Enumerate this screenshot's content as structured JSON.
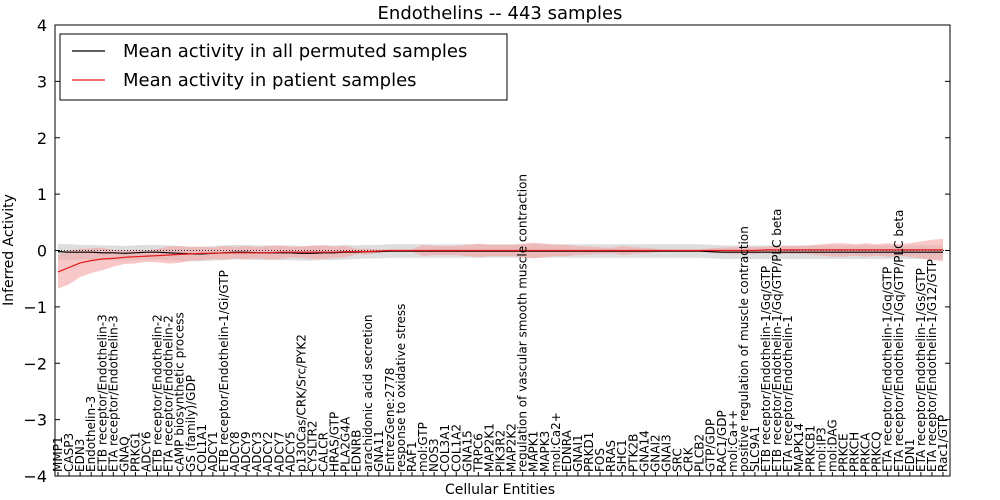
{
  "chart_data": {
    "type": "line",
    "title": "Endothelins -- 443 samples",
    "xlabel": "Cellular Entities",
    "ylabel": "Inferred Activity",
    "ylim": [
      -4,
      4
    ],
    "yticks": [
      -4,
      -3,
      -2,
      -1,
      0,
      1,
      2,
      3,
      4
    ],
    "legend_position": "top-left",
    "colors": {
      "permuted": "#000000",
      "patient": "#e41a1c",
      "patient_band": "#f4a3a3",
      "permuted_band": "#bdbdbd"
    },
    "categories": [
      "MMP1",
      "CASP3",
      "EDN3",
      "Endothelin-3",
      "ETB receptor/Endothelin-3",
      "ETA receptor/Endothelin-3",
      "GNAQ",
      "PRKG1",
      "ADCY6",
      "ETB receptor/Endothelin-2",
      "ETA receptor/Endothelin-2",
      "cAMP biosynthetic process",
      "GS (family)/GDP",
      "COL1A1",
      "ADCY1",
      "ETB receptor/Endothelin-1/Gi/GTP",
      "ADCY8",
      "ADCY9",
      "ADCY3",
      "ADCY2",
      "ADCY7",
      "ADCY5",
      "p130Cas/CRK/Src/PYK2",
      "CYSLTR2",
      "CALCR",
      "HRAS/GTP",
      "PLA2G4A",
      "EDNRB",
      "arachidonic acid secretion",
      "GNA11",
      "EntrezGene:2778",
      "response to oxidative stress",
      "RAF1",
      "mol:GTP",
      "NOS3",
      "COL3A1",
      "COL1A2",
      "GNA15",
      "TRPC6",
      "MAP2K1",
      "PIK3R2",
      "MAP2K2",
      "regulation of vascular smooth muscle contraction",
      "MAPK1",
      "MAPK3",
      "mol:Ca2+",
      "EDNRA",
      "GNAI1",
      "PRKD1",
      "FOS",
      "RRAS",
      "SHC1",
      "PTK2B",
      "GNA14",
      "GNAI2",
      "GNAI3",
      "SRC",
      "CRK",
      "PLCB2",
      "GTP/GDP",
      "RAC1/GDP",
      "mol:Ca++",
      "positive regulation of muscle contraction",
      "SLC9A1",
      "ETB receptor/Endothelin-1/Gq/GTP",
      "ETB receptor/Endothelin-1/Gq/GTP/PLC beta",
      "ETA receptor/Endothelin-1",
      "MAPK14",
      "PRKCB1",
      "mol:IP3",
      "mol:DAG",
      "PRKCE",
      "PRKCH",
      "PRKCA",
      "PRKCQ",
      "ETA receptor/Endothelin-1/Gq/GTP",
      "ETA receptor/Endothelin-1/Gq/GTP/PLC beta",
      "EDN1",
      "ETA receptor/Endothelin-1/Gs/GTP",
      "ETA receptor/Endothelin-1/G12/GTP",
      "Rac1/GTP"
    ],
    "series": [
      {
        "name": "Mean activity in all permuted samples",
        "values": [
          -0.02,
          -0.03,
          -0.03,
          -0.03,
          -0.04,
          -0.04,
          -0.05,
          -0.04,
          -0.03,
          -0.03,
          -0.04,
          -0.05,
          -0.06,
          -0.06,
          -0.05,
          -0.04,
          -0.03,
          -0.03,
          -0.04,
          -0.04,
          -0.04,
          -0.04,
          -0.05,
          -0.05,
          -0.04,
          -0.04,
          -0.03,
          -0.03,
          -0.02,
          -0.02,
          -0.01,
          -0.01,
          -0.01,
          -0.01,
          -0.01,
          -0.01,
          -0.01,
          -0.01,
          -0.01,
          -0.01,
          -0.01,
          -0.01,
          -0.01,
          -0.01,
          -0.01,
          -0.01,
          -0.01,
          -0.01,
          -0.01,
          -0.01,
          -0.01,
          -0.01,
          -0.01,
          -0.01,
          -0.01,
          -0.01,
          -0.01,
          -0.01,
          -0.01,
          -0.02,
          -0.03,
          -0.03,
          -0.03,
          -0.03,
          -0.03,
          -0.03,
          -0.03,
          -0.03,
          -0.03,
          -0.03,
          -0.03,
          -0.03,
          -0.03,
          -0.03,
          -0.03,
          -0.03,
          -0.03,
          -0.03,
          -0.03,
          -0.03,
          -0.03
        ],
        "band": [
          0.14,
          0.14,
          0.13,
          0.13,
          0.13,
          0.13,
          0.13,
          0.13,
          0.13,
          0.13,
          0.13,
          0.13,
          0.13,
          0.13,
          0.13,
          0.13,
          0.13,
          0.13,
          0.13,
          0.13,
          0.13,
          0.13,
          0.13,
          0.13,
          0.13,
          0.13,
          0.13,
          0.12,
          0.12,
          0.12,
          0.12,
          0.12,
          0.12,
          0.12,
          0.12,
          0.12,
          0.12,
          0.12,
          0.12,
          0.12,
          0.12,
          0.12,
          0.12,
          0.12,
          0.12,
          0.12,
          0.12,
          0.12,
          0.12,
          0.12,
          0.12,
          0.12,
          0.12,
          0.12,
          0.12,
          0.12,
          0.12,
          0.12,
          0.12,
          0.12,
          0.12,
          0.12,
          0.12,
          0.12,
          0.12,
          0.12,
          0.12,
          0.12,
          0.12,
          0.12,
          0.12,
          0.12,
          0.12,
          0.12,
          0.12,
          0.12,
          0.12,
          0.12,
          0.12,
          0.12,
          0.12
        ]
      },
      {
        "name": "Mean activity in patient samples",
        "values": [
          -0.38,
          -0.3,
          -0.22,
          -0.18,
          -0.15,
          -0.14,
          -0.12,
          -0.11,
          -0.1,
          -0.09,
          -0.08,
          -0.07,
          -0.06,
          -0.05,
          -0.05,
          -0.04,
          -0.04,
          -0.04,
          -0.04,
          -0.04,
          -0.03,
          -0.03,
          -0.03,
          -0.03,
          -0.03,
          -0.03,
          -0.02,
          -0.02,
          -0.02,
          -0.01,
          0.0,
          0.0,
          0.0,
          0.0,
          0.0,
          0.0,
          0.0,
          0.0,
          0.0,
          0.0,
          0.0,
          0.0,
          0.0,
          0.0,
          0.0,
          0.0,
          0.0,
          0.0,
          0.0,
          0.0,
          0.0,
          0.0,
          0.0,
          0.0,
          0.0,
          0.0,
          0.0,
          0.0,
          0.0,
          0.0,
          0.0,
          0.0,
          0.0,
          0.0,
          0.01,
          0.01,
          0.01,
          0.01,
          0.01,
          0.01,
          0.01,
          0.01,
          0.01,
          0.01,
          0.01,
          0.01,
          0.01,
          0.01,
          0.01,
          0.01,
          0.01
        ],
        "band": [
          0.3,
          0.3,
          0.25,
          0.22,
          0.2,
          0.15,
          0.12,
          0.12,
          0.1,
          0.12,
          0.15,
          0.15,
          0.12,
          0.12,
          0.1,
          0.12,
          0.1,
          0.12,
          0.1,
          0.12,
          0.12,
          0.1,
          0.1,
          0.12,
          0.12,
          0.1,
          0.1,
          0.05,
          0.05,
          0.03,
          0.02,
          0.02,
          0.02,
          0.1,
          0.08,
          0.08,
          0.08,
          0.1,
          0.12,
          0.1,
          0.1,
          0.1,
          0.12,
          0.14,
          0.12,
          0.1,
          0.1,
          0.08,
          0.07,
          0.06,
          0.05,
          0.08,
          0.06,
          0.05,
          0.03,
          0.02,
          0.02,
          0.02,
          0.02,
          0.04,
          0.05,
          0.06,
          0.06,
          0.06,
          0.06,
          0.07,
          0.07,
          0.07,
          0.08,
          0.1,
          0.12,
          0.12,
          0.1,
          0.12,
          0.1,
          0.12,
          0.1,
          0.12,
          0.15,
          0.18,
          0.2
        ]
      }
    ]
  }
}
